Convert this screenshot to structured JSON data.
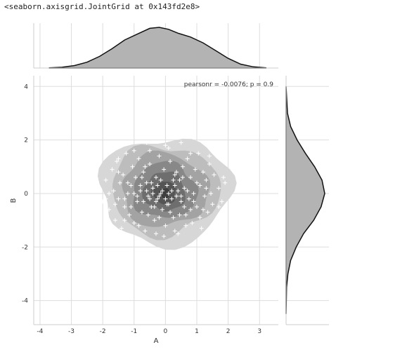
{
  "output_repr": "<seaborn.axisgrid.JointGrid at 0x143fd2e8>",
  "chart_data": {
    "type": "scatter",
    "title": "",
    "xlabel": "A",
    "ylabel": "B",
    "xlim": [
      -4.2,
      3.6
    ],
    "ylim": [
      -4.9,
      4.4
    ],
    "xticks": [
      -4,
      -3,
      -2,
      -1,
      0,
      1,
      2,
      3
    ],
    "yticks": [
      -4,
      -2,
      0,
      2,
      4
    ],
    "grid": true,
    "annotation": "pearsonr = -0.0076; p = 0.9",
    "marker": "+",
    "marker_color": "#ffffff",
    "kde_levels": [
      {
        "rx": [
          -2.1,
          2.1
        ],
        "ry": [
          -1.9,
          2.1
        ],
        "color": "#d7d7d7"
      },
      {
        "rx": [
          -1.75,
          1.7
        ],
        "ry": [
          -1.55,
          1.8
        ],
        "color": "#bdbdbd"
      },
      {
        "rx": [
          -1.4,
          1.35
        ],
        "ry": [
          -1.25,
          1.5
        ],
        "color": "#a3a3a3"
      },
      {
        "rx": [
          -1.05,
          1.0
        ],
        "ry": [
          -0.95,
          1.15
        ],
        "color": "#888888"
      },
      {
        "rx": [
          -0.7,
          0.65
        ],
        "ry": [
          -0.65,
          0.8
        ],
        "color": "#6e6e6e"
      },
      {
        "rx": [
          -0.4,
          0.35
        ],
        "ry": [
          -0.4,
          0.45
        ],
        "color": "#555555"
      },
      {
        "rx": [
          -0.18,
          0.15
        ],
        "ry": [
          -0.18,
          0.2
        ],
        "color": "#3e3e3e"
      }
    ],
    "marginal_x": {
      "x": [
        -3.7,
        -3.3,
        -2.9,
        -2.5,
        -2.1,
        -1.7,
        -1.3,
        -0.9,
        -0.5,
        -0.2,
        0.1,
        0.4,
        0.8,
        1.2,
        1.6,
        2.0,
        2.4,
        2.8,
        3.2
      ],
      "density": [
        0.002,
        0.008,
        0.025,
        0.06,
        0.12,
        0.2,
        0.29,
        0.35,
        0.41,
        0.42,
        0.4,
        0.36,
        0.32,
        0.26,
        0.18,
        0.1,
        0.04,
        0.012,
        0.002
      ],
      "color": "#b3b3b3"
    },
    "marginal_y": {
      "y": [
        -4.5,
        -3.5,
        -3.0,
        -2.5,
        -2.0,
        -1.5,
        -1.0,
        -0.5,
        0.0,
        0.5,
        1.0,
        1.5,
        2.0,
        2.5,
        3.0,
        4.0
      ],
      "density": [
        0.0,
        0.005,
        0.02,
        0.05,
        0.11,
        0.19,
        0.3,
        0.38,
        0.42,
        0.39,
        0.31,
        0.21,
        0.12,
        0.05,
        0.015,
        0.0
      ],
      "color": "#b3b3b3"
    },
    "points": [
      [
        -2.1,
        0.2
      ],
      [
        -2.0,
        -0.3
      ],
      [
        -1.9,
        0.5
      ],
      [
        -1.8,
        -0.6
      ],
      [
        -1.7,
        0.9
      ],
      [
        -1.65,
        0.1
      ],
      [
        -1.6,
        -1.0
      ],
      [
        -1.55,
        1.2
      ],
      [
        -1.5,
        -0.2
      ],
      [
        -1.45,
        0.4
      ],
      [
        -1.4,
        -1.3
      ],
      [
        -1.35,
        0.7
      ],
      [
        -1.3,
        -0.5
      ],
      [
        -1.25,
        1.5
      ],
      [
        -1.2,
        0.0
      ],
      [
        -1.15,
        -0.8
      ],
      [
        -1.1,
        0.3
      ],
      [
        -1.05,
        1.0
      ],
      [
        -1.0,
        -1.1
      ],
      [
        -0.95,
        0.6
      ],
      [
        -0.9,
        -0.3
      ],
      [
        -0.85,
        1.3
      ],
      [
        -0.8,
        0.1
      ],
      [
        -0.75,
        -0.7
      ],
      [
        -0.7,
        0.8
      ],
      [
        -0.65,
        -1.4
      ],
      [
        -0.6,
        0.4
      ],
      [
        -0.55,
        -0.1
      ],
      [
        -0.5,
        1.1
      ],
      [
        -0.45,
        -0.5
      ],
      [
        -0.4,
        0.2
      ],
      [
        -0.35,
        -1.0
      ],
      [
        -0.3,
        0.6
      ],
      [
        -0.25,
        -0.2
      ],
      [
        -0.2,
        1.4
      ],
      [
        -0.15,
        0.0
      ],
      [
        -0.1,
        -0.6
      ],
      [
        -0.05,
        0.9
      ],
      [
        0.0,
        -1.2
      ],
      [
        0.05,
        0.3
      ],
      [
        0.1,
        -0.4
      ],
      [
        0.15,
        1.2
      ],
      [
        0.2,
        0.1
      ],
      [
        0.25,
        -0.9
      ],
      [
        0.3,
        0.7
      ],
      [
        0.35,
        -0.1
      ],
      [
        0.4,
        -1.5
      ],
      [
        0.45,
        0.5
      ],
      [
        0.5,
        -0.3
      ],
      [
        0.55,
        1.0
      ],
      [
        0.6,
        0.2
      ],
      [
        0.65,
        -0.8
      ],
      [
        0.7,
        1.3
      ],
      [
        0.75,
        -0.2
      ],
      [
        0.8,
        0.6
      ],
      [
        0.85,
        -1.1
      ],
      [
        0.9,
        0.0
      ],
      [
        0.95,
        0.9
      ],
      [
        1.0,
        -0.5
      ],
      [
        1.05,
        1.5
      ],
      [
        1.1,
        0.3
      ],
      [
        1.15,
        -1.3
      ],
      [
        1.2,
        0.8
      ],
      [
        1.25,
        -0.1
      ],
      [
        1.3,
        0.5
      ],
      [
        1.35,
        -0.7
      ],
      [
        1.4,
        1.1
      ],
      [
        1.45,
        0.0
      ],
      [
        1.5,
        -0.4
      ],
      [
        1.55,
        0.7
      ],
      [
        1.6,
        -1.0
      ],
      [
        1.7,
        0.2
      ],
      [
        1.8,
        -0.3
      ],
      [
        1.9,
        0.4
      ],
      [
        -0.3,
        -0.3
      ],
      [
        -0.2,
        -0.1
      ],
      [
        -0.4,
        0.0
      ],
      [
        -0.1,
        0.1
      ],
      [
        0.0,
        -0.2
      ],
      [
        -0.5,
        -0.2
      ],
      [
        0.1,
        0.0
      ],
      [
        -0.6,
        0.1
      ],
      [
        -0.25,
        0.3
      ],
      [
        0.2,
        -0.2
      ],
      [
        -0.35,
        -0.5
      ],
      [
        0.3,
        0.3
      ],
      [
        -0.7,
        -0.3
      ],
      [
        0.4,
        0.1
      ],
      [
        -0.8,
        0.3
      ],
      [
        0.5,
        -0.1
      ],
      [
        -0.15,
        0.5
      ],
      [
        0.05,
        -0.4
      ],
      [
        -0.45,
        0.4
      ],
      [
        0.25,
        0.5
      ],
      [
        -0.9,
        -0.1
      ],
      [
        0.6,
        -0.5
      ],
      [
        -1.0,
        0.0
      ],
      [
        0.7,
        0.1
      ],
      [
        -1.2,
        0.4
      ],
      [
        0.9,
        -0.3
      ],
      [
        -1.3,
        -0.2
      ],
      [
        1.0,
        0.4
      ],
      [
        -0.55,
        -0.8
      ],
      [
        0.15,
        -0.7
      ],
      [
        -0.75,
        0.6
      ],
      [
        0.35,
        0.8
      ],
      [
        -1.1,
        -0.5
      ],
      [
        0.8,
        -0.6
      ],
      [
        -0.2,
        -0.9
      ],
      [
        0.45,
        -0.8
      ],
      [
        -0.65,
        1.0
      ],
      [
        0.55,
        0.6
      ],
      [
        -1.5,
        0.8
      ],
      [
        1.2,
        -0.6
      ],
      [
        -1.6,
        -0.4
      ],
      [
        1.3,
        0.2
      ],
      [
        -0.85,
        -1.2
      ],
      [
        0.65,
        -1.2
      ],
      [
        -0.5,
        1.6
      ],
      [
        0.1,
        1.7
      ],
      [
        -1.0,
        1.6
      ],
      [
        0.8,
        1.5
      ],
      [
        -1.3,
        -1.0
      ],
      [
        1.1,
        -0.9
      ],
      [
        -0.3,
        -1.5
      ],
      [
        0.3,
        -1.4
      ],
      [
        -1.8,
        0.0
      ],
      [
        1.7,
        -0.5
      ],
      [
        -0.05,
        -1.6
      ],
      [
        0.0,
        1.8
      ],
      [
        -0.6,
        1.9
      ],
      [
        0.5,
        1.9
      ],
      [
        1.4,
        1.4
      ],
      [
        -1.5,
        1.3
      ],
      [
        -1.9,
        -0.2
      ],
      [
        1.85,
        0.6
      ]
    ]
  }
}
